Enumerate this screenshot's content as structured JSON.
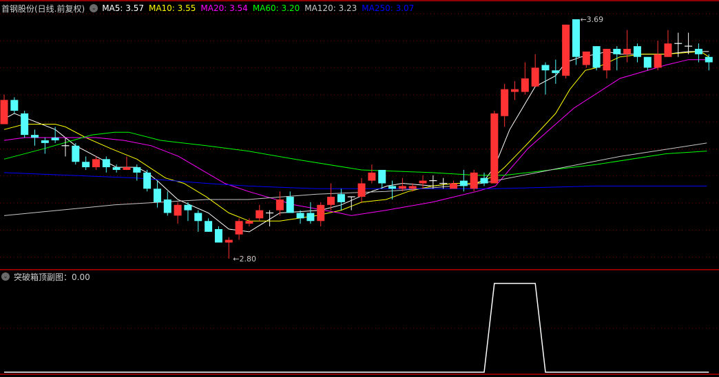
{
  "header": {
    "title": "首钢股份(日线.前复权)",
    "ma_labels": [
      {
        "text": "MA5: 3.57",
        "color": "#FFFFFF"
      },
      {
        "text": "MA10: 3.55",
        "color": "#FFFF00"
      },
      {
        "text": "MA20: 3.54",
        "color": "#FF00FF"
      },
      {
        "text": "MA60: 3.20",
        "color": "#00FF00"
      },
      {
        "text": "MA120: 3.23",
        "color": "#C8C8C8"
      },
      {
        "text": "MA250: 3.07",
        "color": "#0000FF"
      }
    ]
  },
  "subchart": {
    "label": "突破箱顶副图：0.00"
  },
  "colors": {
    "up": "#FF3333",
    "down": "#54FCFC",
    "flat": "#FFFFFF",
    "grid": "#7a0000",
    "frame": "#C00000",
    "indicator": "#FFFFFF"
  },
  "chart_data": [
    {
      "type": "candlestick",
      "title": "首钢股份(日线.前复权)",
      "ylim": [
        2.8,
        3.69
      ],
      "annotations": [
        {
          "text": "3.69",
          "index": 56,
          "value": 3.69
        },
        {
          "text": "2.80",
          "index": 22,
          "value": 2.8
        }
      ],
      "ohlc_fields": [
        "open",
        "high",
        "low",
        "close"
      ],
      "candles": [
        [
          3.3,
          3.41,
          3.3,
          3.39
        ],
        [
          3.39,
          3.4,
          3.34,
          3.35
        ],
        [
          3.34,
          3.35,
          3.25,
          3.26
        ],
        [
          3.26,
          3.28,
          3.22,
          3.25
        ],
        [
          3.24,
          3.25,
          3.19,
          3.23
        ],
        [
          3.25,
          3.29,
          3.23,
          3.24
        ],
        [
          3.22,
          3.25,
          3.18,
          3.22
        ],
        [
          3.22,
          3.23,
          3.15,
          3.16
        ],
        [
          3.16,
          3.18,
          3.13,
          3.14
        ],
        [
          3.14,
          3.18,
          3.13,
          3.17
        ],
        [
          3.17,
          3.18,
          3.12,
          3.14
        ],
        [
          3.14,
          3.15,
          3.12,
          3.13
        ],
        [
          3.13,
          3.18,
          3.13,
          3.14
        ],
        [
          3.14,
          3.15,
          3.09,
          3.12
        ],
        [
          3.12,
          3.13,
          3.05,
          3.06
        ],
        [
          3.06,
          3.09,
          2.99,
          3.01
        ],
        [
          3.02,
          3.05,
          2.96,
          2.97
        ],
        [
          2.96,
          3.01,
          2.93,
          3.0
        ],
        [
          3.0,
          3.01,
          2.94,
          2.98
        ],
        [
          2.97,
          2.98,
          2.9,
          2.94
        ],
        [
          2.94,
          2.95,
          2.9,
          2.9
        ],
        [
          2.91,
          2.92,
          2.86,
          2.86
        ],
        [
          2.86,
          2.88,
          2.8,
          2.87
        ],
        [
          2.89,
          2.95,
          2.87,
          2.94
        ],
        [
          2.93,
          2.95,
          2.92,
          2.94
        ],
        [
          2.95,
          3.0,
          2.94,
          2.98
        ],
        [
          2.97,
          2.98,
          2.92,
          2.97
        ],
        [
          2.98,
          3.05,
          2.96,
          3.02
        ],
        [
          3.03,
          3.05,
          2.97,
          2.97
        ],
        [
          2.97,
          2.98,
          2.93,
          2.95
        ],
        [
          2.97,
          3.01,
          2.93,
          2.94
        ],
        [
          2.94,
          3.01,
          2.92,
          3.0
        ],
        [
          3.0,
          3.08,
          2.98,
          3.03
        ],
        [
          3.04,
          3.06,
          2.98,
          3.01
        ],
        [
          3.03,
          3.03,
          2.98,
          3.03
        ],
        [
          3.03,
          3.1,
          3.01,
          3.08
        ],
        [
          3.09,
          3.15,
          3.08,
          3.12
        ],
        [
          3.13,
          3.13,
          3.06,
          3.08
        ],
        [
          3.07,
          3.09,
          3.02,
          3.06
        ],
        [
          3.06,
          3.1,
          3.05,
          3.07
        ],
        [
          3.06,
          3.08,
          3.05,
          3.07
        ],
        [
          3.08,
          3.11,
          3.06,
          3.09
        ],
        [
          3.09,
          3.11,
          3.06,
          3.09
        ],
        [
          3.08,
          3.1,
          3.06,
          3.08
        ],
        [
          3.06,
          3.09,
          3.06,
          3.08
        ],
        [
          3.09,
          3.13,
          3.05,
          3.07
        ],
        [
          3.06,
          3.13,
          3.05,
          3.12
        ],
        [
          3.1,
          3.12,
          3.07,
          3.08
        ],
        [
          3.08,
          3.35,
          3.08,
          3.34
        ],
        [
          3.33,
          3.45,
          3.29,
          3.43
        ],
        [
          3.42,
          3.46,
          3.39,
          3.43
        ],
        [
          3.42,
          3.53,
          3.41,
          3.47
        ],
        [
          3.44,
          3.56,
          3.44,
          3.51
        ],
        [
          3.52,
          3.53,
          3.41,
          3.5
        ],
        [
          3.5,
          3.54,
          3.45,
          3.49
        ],
        [
          3.48,
          3.67,
          3.47,
          3.67
        ],
        [
          3.69,
          3.69,
          3.52,
          3.55
        ],
        [
          3.52,
          3.57,
          3.51,
          3.57
        ],
        [
          3.59,
          3.59,
          3.5,
          3.51
        ],
        [
          3.5,
          3.58,
          3.47,
          3.58
        ],
        [
          3.58,
          3.59,
          3.5,
          3.56
        ],
        [
          3.56,
          3.65,
          3.53,
          3.58
        ],
        [
          3.59,
          3.6,
          3.53,
          3.55
        ],
        [
          3.55,
          3.55,
          3.5,
          3.51
        ],
        [
          3.51,
          3.61,
          3.5,
          3.56
        ],
        [
          3.55,
          3.65,
          3.55,
          3.6
        ],
        [
          3.6,
          3.64,
          3.55,
          3.6
        ],
        [
          3.59,
          3.64,
          3.56,
          3.59
        ],
        [
          3.58,
          3.6,
          3.53,
          3.56
        ],
        [
          3.55,
          3.56,
          3.5,
          3.53
        ]
      ],
      "series": [
        {
          "name": "MA5",
          "color": "#FFFFFF",
          "points": [
            [
              0,
              3.32
            ],
            [
              1,
              3.34
            ],
            [
              5,
              3.28
            ],
            [
              7,
              3.22
            ],
            [
              9,
              3.18
            ],
            [
              11,
              3.14
            ],
            [
              13,
              3.14
            ],
            [
              14,
              3.12
            ],
            [
              15,
              3.09
            ],
            [
              17,
              3.02
            ],
            [
              20,
              2.97
            ],
            [
              22,
              2.91
            ],
            [
              24,
              2.9
            ],
            [
              27,
              2.97
            ],
            [
              31,
              2.98
            ],
            [
              33,
              3.0
            ],
            [
              36,
              3.05
            ],
            [
              37.5,
              3.07
            ],
            [
              39,
              3.08
            ],
            [
              42,
              3.07
            ],
            [
              44,
              3.08
            ],
            [
              46,
              3.08
            ],
            [
              47,
              3.09
            ],
            [
              48,
              3.14
            ],
            [
              49.5,
              3.28
            ],
            [
              52,
              3.44
            ],
            [
              54,
              3.48
            ],
            [
              55,
              3.53
            ],
            [
              56.5,
              3.55
            ],
            [
              58,
              3.56
            ],
            [
              59,
              3.57
            ],
            [
              60.3,
              3.56
            ],
            [
              62.5,
              3.56
            ],
            [
              64.8,
              3.56
            ],
            [
              67,
              3.57
            ],
            [
              69,
              3.57
            ]
          ]
        },
        {
          "name": "MA10",
          "color": "#FFFF00",
          "points": [
            [
              0,
              3.28
            ],
            [
              2,
              3.3
            ],
            [
              5,
              3.3
            ],
            [
              6,
              3.29
            ],
            [
              8,
              3.25
            ],
            [
              10.4,
              3.21
            ],
            [
              13,
              3.17
            ],
            [
              15.8,
              3.1
            ],
            [
              17.6,
              3.08
            ],
            [
              19.8,
              3.03
            ],
            [
              22,
              2.97
            ],
            [
              24,
              2.94
            ],
            [
              27,
              2.94
            ],
            [
              30.6,
              2.96
            ],
            [
              33,
              2.98
            ],
            [
              35,
              3.01
            ],
            [
              37.4,
              3.02
            ],
            [
              39.6,
              3.05
            ],
            [
              41.9,
              3.07
            ],
            [
              44,
              3.08
            ],
            [
              46.3,
              3.08
            ],
            [
              48.1,
              3.11
            ],
            [
              49,
              3.14
            ],
            [
              51.3,
              3.23
            ],
            [
              54,
              3.34
            ],
            [
              55.4,
              3.43
            ],
            [
              56.9,
              3.5
            ],
            [
              58,
              3.51
            ],
            [
              60.3,
              3.55
            ],
            [
              62.5,
              3.56
            ],
            [
              64.8,
              3.56
            ],
            [
              68.2,
              3.57
            ],
            [
              69,
              3.55
            ]
          ]
        },
        {
          "name": "MA20",
          "color": "#FF00FF",
          "points": [
            [
              0,
              3.24
            ],
            [
              2,
              3.25
            ],
            [
              9,
              3.25
            ],
            [
              11.7,
              3.24
            ],
            [
              14.4,
              3.22
            ],
            [
              17.1,
              3.18
            ],
            [
              19.8,
              3.12
            ],
            [
              21.6,
              3.08
            ],
            [
              23.9,
              3.05
            ],
            [
              28.4,
              3.0
            ],
            [
              32.8,
              2.97
            ],
            [
              34,
              2.96
            ],
            [
              37.4,
              2.98
            ],
            [
              41.9,
              3.01
            ],
            [
              46.3,
              3.05
            ],
            [
              48.1,
              3.07
            ],
            [
              51.3,
              3.21
            ],
            [
              55.8,
              3.36
            ],
            [
              60.3,
              3.47
            ],
            [
              64.8,
              3.52
            ],
            [
              67,
              3.54
            ],
            [
              68.8,
              3.54
            ]
          ]
        },
        {
          "name": "MA60",
          "color": "#00FF00",
          "points": [
            [
              0,
              3.17
            ],
            [
              4,
              3.21
            ],
            [
              8.6,
              3.26
            ],
            [
              10.8,
              3.27
            ],
            [
              12.2,
              3.27
            ],
            [
              15.3,
              3.24
            ],
            [
              19.8,
              3.22
            ],
            [
              23.9,
              3.2
            ],
            [
              28.4,
              3.17
            ],
            [
              35,
              3.13
            ],
            [
              41.9,
              3.12
            ],
            [
              46.3,
              3.11
            ],
            [
              49,
              3.11
            ],
            [
              58,
              3.15
            ],
            [
              64.8,
              3.19
            ],
            [
              68.8,
              3.2
            ]
          ]
        },
        {
          "name": "MA120",
          "color": "#C8C8C8",
          "points": [
            [
              0,
              2.96
            ],
            [
              10.8,
              3.0
            ],
            [
              15.3,
              3.01
            ],
            [
              19.8,
              3.02
            ],
            [
              23.9,
              3.02
            ],
            [
              30.6,
              3.04
            ],
            [
              37.4,
              3.05
            ],
            [
              44,
              3.07
            ],
            [
              46.8,
              3.08
            ],
            [
              53.5,
              3.13
            ],
            [
              60.3,
              3.18
            ],
            [
              68.8,
              3.23
            ]
          ]
        },
        {
          "name": "MA250",
          "color": "#0000FF",
          "points": [
            [
              0,
              3.12
            ],
            [
              6.3,
              3.11
            ],
            [
              13,
              3.1
            ],
            [
              19.8,
              3.08
            ],
            [
              23.9,
              3.07
            ],
            [
              30.6,
              3.06
            ],
            [
              48.1,
              3.06
            ],
            [
              58,
              3.07
            ],
            [
              68.8,
              3.07
            ]
          ]
        }
      ]
    },
    {
      "type": "line",
      "title": "突破箱顶副图",
      "ylim": [
        0,
        1
      ],
      "series": [
        {
          "values": [
            0,
            0,
            0,
            0,
            0,
            0,
            0,
            0,
            0,
            0,
            0,
            0,
            0,
            0,
            0,
            0,
            0,
            0,
            0,
            0,
            0,
            0,
            0,
            0,
            0,
            0,
            0,
            0,
            0,
            0,
            0,
            0,
            0,
            0,
            0,
            0,
            0,
            0,
            0,
            0,
            0,
            0,
            0,
            0,
            0,
            0,
            0,
            0,
            1,
            1,
            1,
            1,
            1,
            0,
            0,
            0,
            0,
            0,
            0,
            0,
            0,
            0,
            0,
            0,
            0,
            0,
            0,
            0,
            0,
            0
          ]
        }
      ]
    }
  ]
}
